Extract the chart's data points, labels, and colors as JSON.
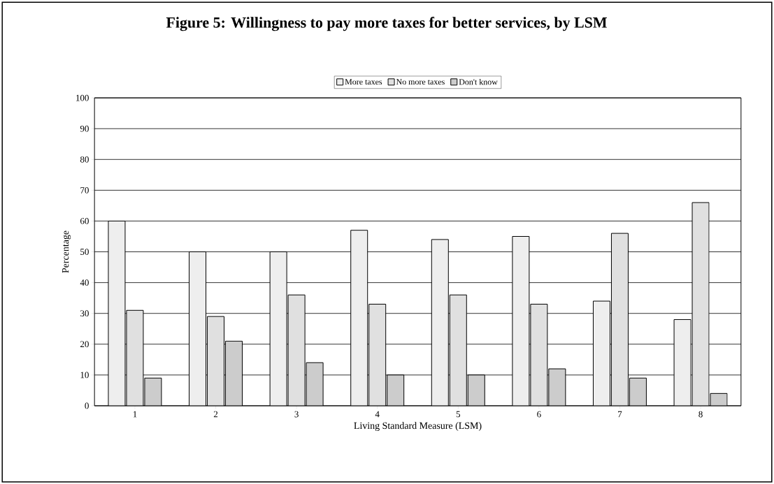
{
  "chart_data": {
    "type": "bar",
    "title": "Figure 5: Willingness to pay more taxes for better services, by LSM",
    "xlabel": "Living Standard Measure (LSM)",
    "ylabel": "Percentage",
    "categories": [
      "1",
      "2",
      "3",
      "4",
      "5",
      "6",
      "7",
      "8"
    ],
    "series": [
      {
        "name": "More taxes",
        "color": "#eeeeee",
        "values": [
          60,
          50,
          50,
          57,
          54,
          55,
          34,
          28
        ]
      },
      {
        "name": "No more taxes",
        "color": "#e0e0e0",
        "values": [
          31,
          29,
          36,
          33,
          36,
          33,
          56,
          66
        ]
      },
      {
        "name": "Don't know",
        "color": "#cccccc",
        "values": [
          9,
          21,
          14,
          10,
          10,
          12,
          9,
          4
        ]
      }
    ],
    "ylim": [
      0,
      100
    ],
    "yticks": [
      0,
      10,
      20,
      30,
      40,
      50,
      60,
      70,
      80,
      90,
      100
    ],
    "grid": "y",
    "legend": "top"
  }
}
